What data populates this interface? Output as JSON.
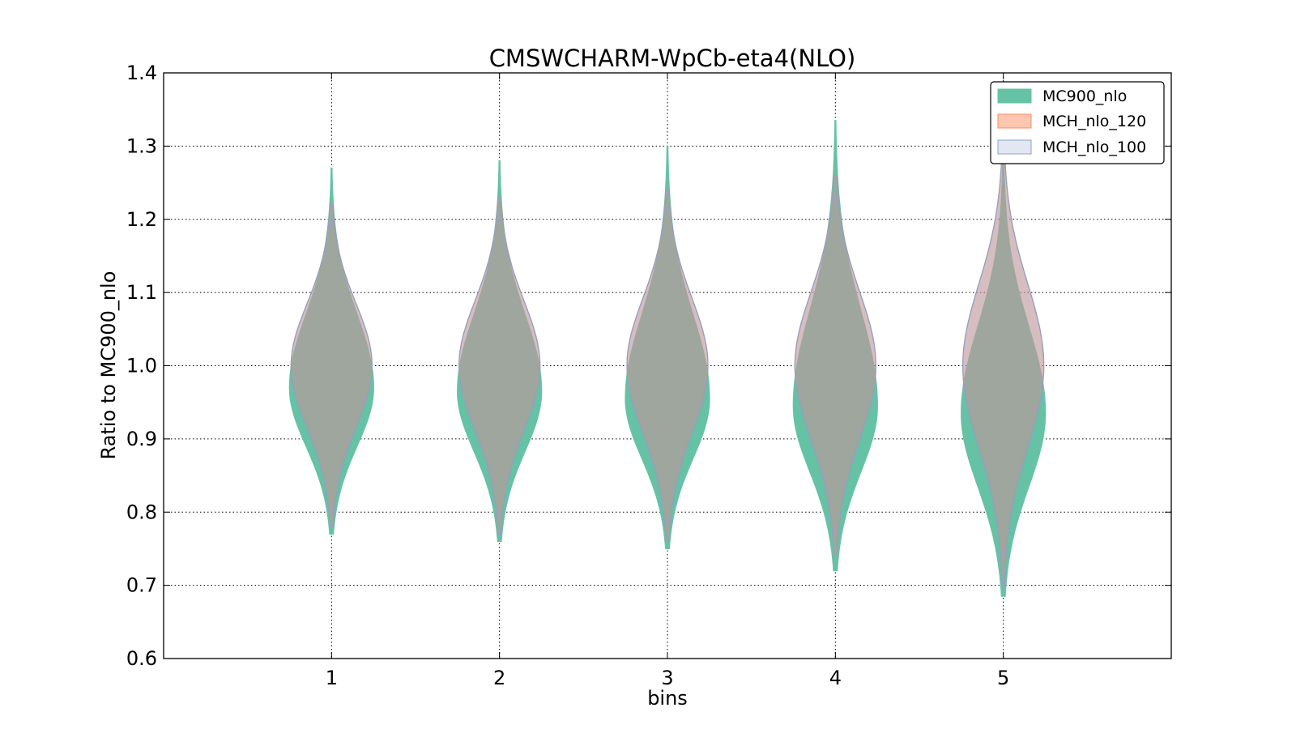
{
  "chart_data": {
    "type": "violin",
    "title": "CMSWCHARM-WpCb-eta4(NLO)",
    "xlabel": "bins",
    "ylabel": "Ratio to MC900_nlo",
    "categories": [
      "1",
      "2",
      "3",
      "4",
      "5"
    ],
    "x_ticks": [
      1,
      2,
      3,
      4,
      5
    ],
    "xlim": [
      0,
      6
    ],
    "ylim": [
      0.6,
      1.4
    ],
    "y_ticks": [
      "0.6",
      "0.7",
      "0.8",
      "0.9",
      "1.0",
      "1.1",
      "1.2",
      "1.3",
      "1.4"
    ],
    "grid": true,
    "legend_position": "top-right",
    "series": [
      {
        "name": "MC900_nlo",
        "color": "#66c2a5",
        "violins": [
          {
            "bin": 1,
            "min": 0.77,
            "max": 1.27,
            "mode": 0.97
          },
          {
            "bin": 2,
            "min": 0.76,
            "max": 1.28,
            "mode": 0.965
          },
          {
            "bin": 3,
            "min": 0.75,
            "max": 1.3,
            "mode": 0.955
          },
          {
            "bin": 4,
            "min": 0.72,
            "max": 1.335,
            "mode": 0.945
          },
          {
            "bin": 5,
            "min": 0.685,
            "max": 1.29,
            "mode": 0.935
          }
        ]
      },
      {
        "name": "MCH_nlo_120",
        "color": "#fc8d62",
        "violins": [
          {
            "bin": 1,
            "min": 0.78,
            "max": 1.22,
            "mode": 1.0
          },
          {
            "bin": 2,
            "min": 0.77,
            "max": 1.23,
            "mode": 1.0
          },
          {
            "bin": 3,
            "min": 0.76,
            "max": 1.24,
            "mode": 1.0
          },
          {
            "bin": 4,
            "min": 0.74,
            "max": 1.26,
            "mode": 1.0
          },
          {
            "bin": 5,
            "min": 0.7,
            "max": 1.28,
            "mode": 1.0
          }
        ]
      },
      {
        "name": "MCH_nlo_100",
        "color": "#8da0cb",
        "violins": [
          {
            "bin": 1,
            "min": 0.78,
            "max": 1.22,
            "mode": 1.0
          },
          {
            "bin": 2,
            "min": 0.77,
            "max": 1.23,
            "mode": 1.0
          },
          {
            "bin": 3,
            "min": 0.76,
            "max": 1.24,
            "mode": 1.0
          },
          {
            "bin": 4,
            "min": 0.74,
            "max": 1.26,
            "mode": 1.0
          },
          {
            "bin": 5,
            "min": 0.7,
            "max": 1.28,
            "mode": 1.0
          }
        ]
      }
    ]
  }
}
